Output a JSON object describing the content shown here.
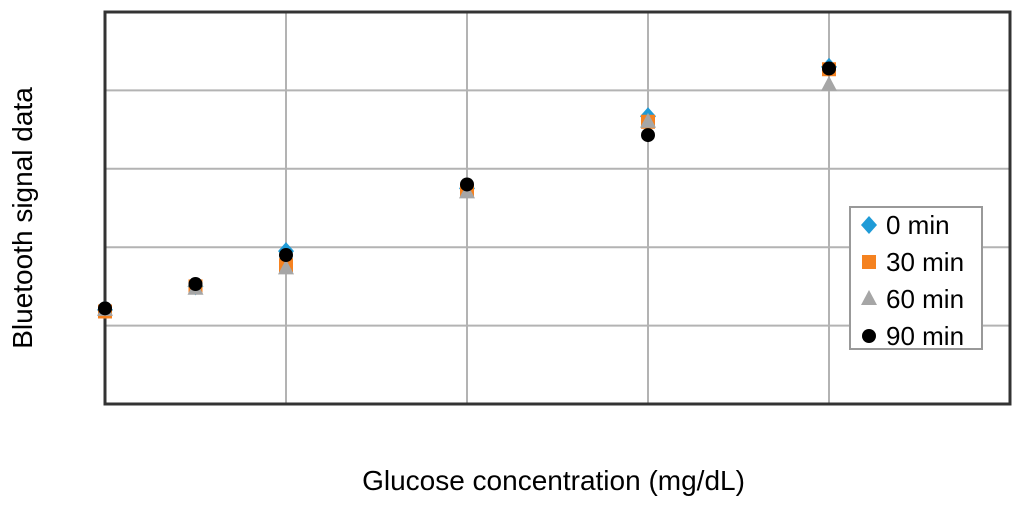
{
  "chart_data": {
    "type": "scatter",
    "title": "",
    "xlabel": "Glucose concentration (mg/dL)",
    "ylabel": "Bluetooth signal data",
    "x_tick_labels_shown": false,
    "y_tick_labels_shown": false,
    "xlim": [
      0,
      5
    ],
    "ylim": [
      0,
      5
    ],
    "grid": true,
    "legend_position": "right",
    "series": [
      {
        "name": "0 min",
        "marker": "diamond",
        "color": "#1f9bd7",
        "x": [
          0,
          0.5,
          1,
          2,
          3,
          4
        ],
        "y": [
          1.2,
          1.5,
          1.95,
          2.75,
          3.67,
          4.3
        ]
      },
      {
        "name": "30 min",
        "marker": "square",
        "color": "#f58220",
        "x": [
          0,
          0.5,
          1,
          2,
          3,
          4
        ],
        "y": [
          1.18,
          1.5,
          1.77,
          2.72,
          3.6,
          4.27
        ]
      },
      {
        "name": "60 min",
        "marker": "triangle",
        "color": "#a6a6a6",
        "x": [
          0,
          0.5,
          1,
          2,
          3,
          4
        ],
        "y": [
          1.2,
          1.47,
          1.73,
          2.7,
          3.6,
          4.07
        ]
      },
      {
        "name": "90 min",
        "marker": "circle",
        "color": "#000000",
        "x": [
          0,
          0.5,
          1,
          2,
          3,
          4
        ],
        "y": [
          1.22,
          1.53,
          1.9,
          2.8,
          3.43,
          4.28
        ]
      }
    ]
  }
}
